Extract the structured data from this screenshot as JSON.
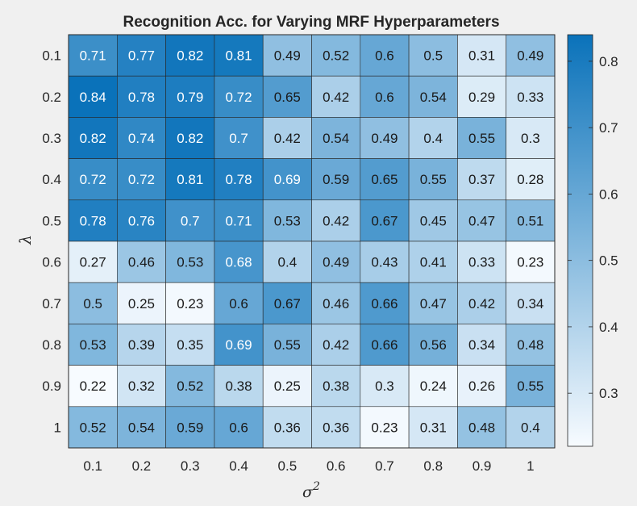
{
  "chart_data": {
    "type": "heatmap",
    "title": "Recognition Acc. for Varying MRF Hyperparameters",
    "xlabel": "σ",
    "xlabel_sup": "2",
    "ylabel": "λ",
    "x": [
      "0.1",
      "0.2",
      "0.3",
      "0.4",
      "0.5",
      "0.6",
      "0.7",
      "0.8",
      "0.9",
      "1"
    ],
    "y": [
      "0.1",
      "0.2",
      "0.3",
      "0.4",
      "0.5",
      "0.6",
      "0.7",
      "0.8",
      "0.9",
      "1"
    ],
    "values": [
      [
        0.71,
        0.77,
        0.82,
        0.81,
        0.49,
        0.52,
        0.6,
        0.5,
        0.31,
        0.49
      ],
      [
        0.84,
        0.78,
        0.79,
        0.72,
        0.65,
        0.42,
        0.6,
        0.54,
        0.29,
        0.33
      ],
      [
        0.82,
        0.74,
        0.82,
        0.7,
        0.42,
        0.54,
        0.49,
        0.4,
        0.55,
        0.3
      ],
      [
        0.72,
        0.72,
        0.81,
        0.78,
        0.69,
        0.59,
        0.65,
        0.55,
        0.37,
        0.28
      ],
      [
        0.78,
        0.76,
        0.7,
        0.71,
        0.53,
        0.42,
        0.67,
        0.45,
        0.47,
        0.51
      ],
      [
        0.27,
        0.46,
        0.53,
        0.68,
        0.4,
        0.49,
        0.43,
        0.41,
        0.33,
        0.23
      ],
      [
        0.5,
        0.25,
        0.23,
        0.6,
        0.67,
        0.46,
        0.66,
        0.47,
        0.42,
        0.34
      ],
      [
        0.53,
        0.39,
        0.35,
        0.69,
        0.55,
        0.42,
        0.66,
        0.56,
        0.34,
        0.48
      ],
      [
        0.22,
        0.32,
        0.52,
        0.38,
        0.25,
        0.38,
        0.3,
        0.24,
        0.26,
        0.55
      ],
      [
        0.52,
        0.54,
        0.59,
        0.6,
        0.36,
        0.36,
        0.23,
        0.31,
        0.48,
        0.4
      ]
    ],
    "colorbar": {
      "range": [
        0.22,
        0.84
      ],
      "ticks": [
        "0.3",
        "0.4",
        "0.5",
        "0.6",
        "0.7",
        "0.8"
      ],
      "color_low": "#f7fbff",
      "color_high": "#0a72ba"
    },
    "text_threshold": 0.68
  }
}
